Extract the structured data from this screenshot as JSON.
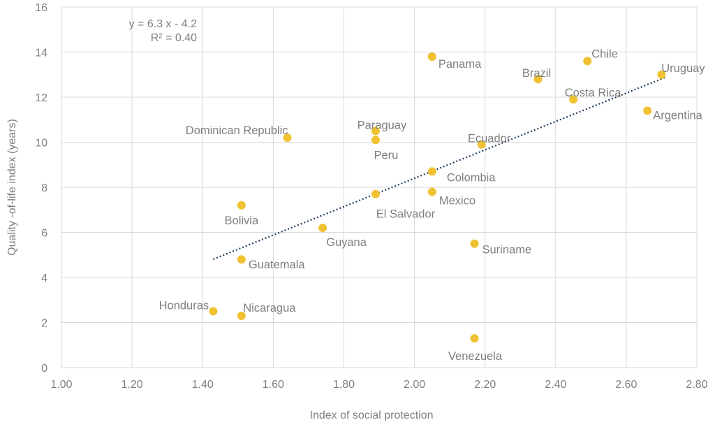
{
  "chart_data": {
    "type": "scatter",
    "title": "",
    "xlabel": "Index of social protection",
    "ylabel": "Quality -of-life index (years)",
    "xlim": [
      1.0,
      2.8
    ],
    "ylim": [
      0,
      16
    ],
    "x_ticks": [
      "1.00",
      "1.20",
      "1.40",
      "1.60",
      "1.80",
      "2.00",
      "2.20",
      "2.40",
      "2.60",
      "2.80"
    ],
    "y_ticks": [
      "0",
      "2",
      "4",
      "6",
      "8",
      "10",
      "12",
      "14",
      "16"
    ],
    "grid": true,
    "legend": "none",
    "point_color": "#F0C232",
    "trendline_color": "#1F3A5F",
    "trendline": {
      "slope": 6.3,
      "intercept": -4.2,
      "x_range": [
        1.43,
        2.71
      ],
      "style": "dotted"
    },
    "equation": "y = 6.3 x - 4.2",
    "r_squared": "R² = 0.40",
    "points": [
      {
        "label": "Panama",
        "x": 2.05,
        "y": 13.8
      },
      {
        "label": "Chile",
        "x": 2.49,
        "y": 13.6
      },
      {
        "label": "Brazil",
        "x": 2.35,
        "y": 12.8
      },
      {
        "label": "Uruguay",
        "x": 2.7,
        "y": 13.0
      },
      {
        "label": "Costa Rica",
        "x": 2.45,
        "y": 11.9
      },
      {
        "label": "Argentina",
        "x": 2.66,
        "y": 11.4
      },
      {
        "label": "Dominican Republic",
        "x": 1.64,
        "y": 10.2
      },
      {
        "label": "Paraguay",
        "x": 1.89,
        "y": 10.5
      },
      {
        "label": "Peru",
        "x": 1.89,
        "y": 10.1
      },
      {
        "label": "Ecuador",
        "x": 2.19,
        "y": 9.9
      },
      {
        "label": "Colombia",
        "x": 2.05,
        "y": 8.7
      },
      {
        "label": "Mexico",
        "x": 2.05,
        "y": 7.8
      },
      {
        "label": "El Salvador",
        "x": 1.89,
        "y": 7.7
      },
      {
        "label": "Bolivia",
        "x": 1.51,
        "y": 7.2
      },
      {
        "label": "Guyana",
        "x": 1.74,
        "y": 6.2
      },
      {
        "label": "Suriname",
        "x": 2.17,
        "y": 5.5
      },
      {
        "label": "Guatemala",
        "x": 1.51,
        "y": 4.8
      },
      {
        "label": "Honduras",
        "x": 1.43,
        "y": 2.5
      },
      {
        "label": "Nicaragua",
        "x": 1.51,
        "y": 2.3
      },
      {
        "label": "Venezuela",
        "x": 2.17,
        "y": 1.3
      }
    ]
  }
}
